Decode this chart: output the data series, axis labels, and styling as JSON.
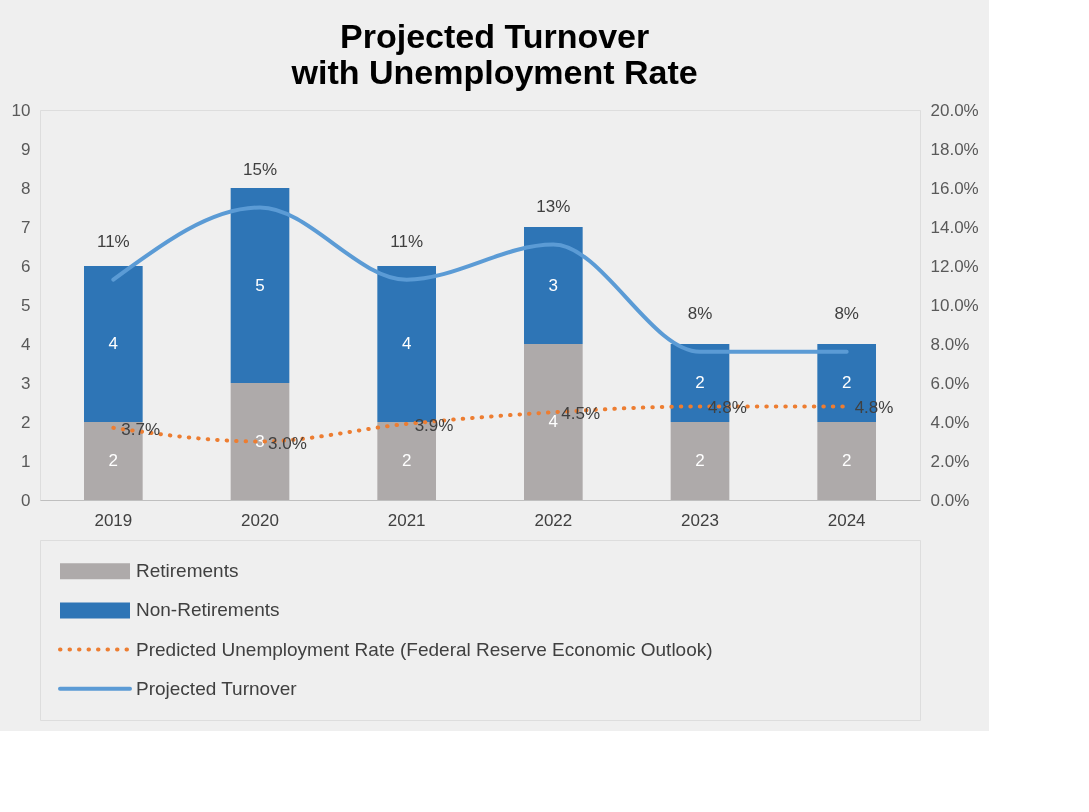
{
  "chart_data": {
    "type": "bar",
    "stacked": true,
    "title": "Projected Turnover\nwith Unemployment Rate",
    "categories": [
      "2019",
      "2020",
      "2021",
      "2022",
      "2023",
      "2024"
    ],
    "series": [
      {
        "name": "Retirements",
        "color": "#aeaaaa",
        "values": [
          2,
          3,
          2,
          4,
          2,
          2
        ]
      },
      {
        "name": "Non-Retirements",
        "color": "#2e75b6",
        "values": [
          4,
          5,
          4,
          3,
          2,
          2
        ]
      },
      {
        "name": "Predicted Unemployment Rate (Federal Reserve Economic Outlook)",
        "type": "line",
        "axis": "y2",
        "color": "#ed7d31",
        "line_style": "dotted",
        "values": [
          3.7,
          3.0,
          3.9,
          4.5,
          4.8,
          4.8
        ],
        "value_labels": [
          "3.7%",
          "3.0%",
          "3.9%",
          "4.5%",
          "4.8%",
          "4.8%"
        ]
      },
      {
        "name": "Projected Turnover",
        "type": "line",
        "axis": "y2",
        "color": "#5b9bd5",
        "line_style": "solid",
        "values": [
          11.3,
          15.0,
          11.3,
          13.1,
          7.6,
          7.6
        ],
        "value_labels": [
          "11%",
          "15%",
          "11%",
          "13%",
          "8%",
          "8%"
        ]
      }
    ],
    "ylim": [
      0,
      10
    ],
    "yticks": [
      0,
      1,
      2,
      3,
      4,
      5,
      6,
      7,
      8,
      9,
      10
    ],
    "y2lim": [
      0,
      20
    ],
    "y2ticks": [
      {
        "value": 0,
        "label": "0.0%"
      },
      {
        "value": 2,
        "label": "2.0%"
      },
      {
        "value": 4,
        "label": "4.0%"
      },
      {
        "value": 6,
        "label": "6.0%"
      },
      {
        "value": 8,
        "label": "8.0%"
      },
      {
        "value": 10,
        "label": "10.0%"
      },
      {
        "value": 12,
        "label": "12.0%"
      },
      {
        "value": 14,
        "label": "14.0%"
      },
      {
        "value": 16,
        "label": "16.0%"
      },
      {
        "value": 18,
        "label": "18.0%"
      },
      {
        "value": 20,
        "label": "20.0%"
      }
    ],
    "data_labels": true,
    "grid": false,
    "legend": "bottom"
  }
}
